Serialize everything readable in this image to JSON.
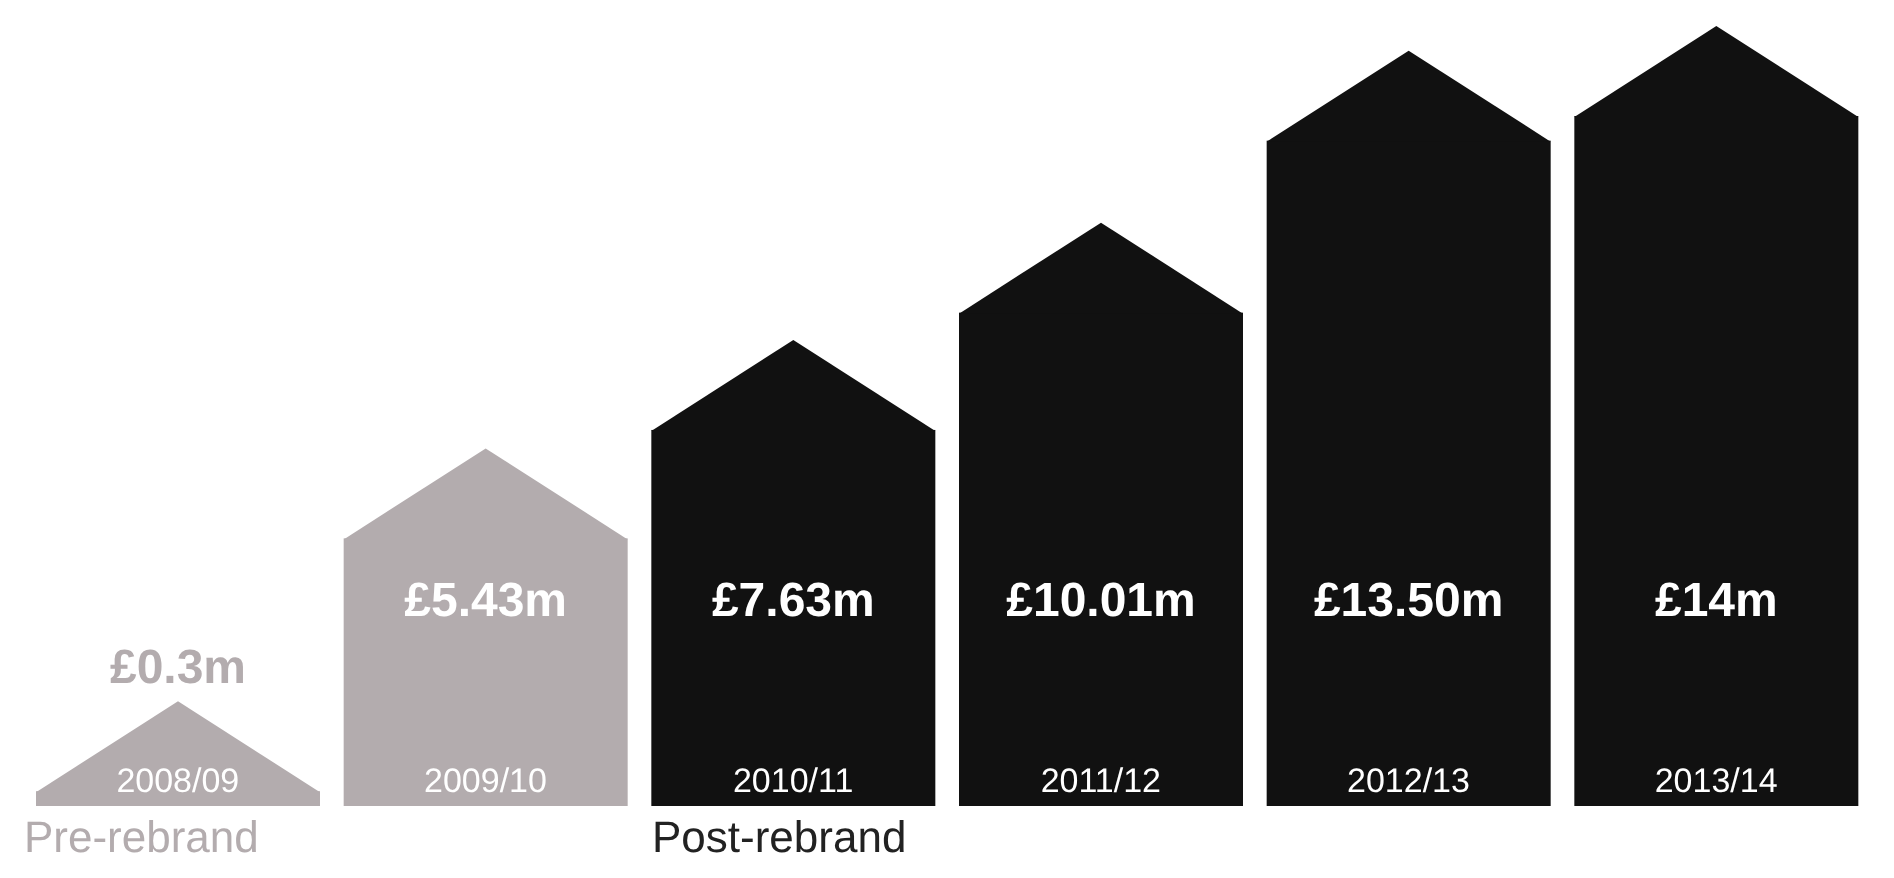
{
  "chart_data": {
    "type": "bar",
    "categories": [
      "2008/09",
      "2009/10",
      "2010/11",
      "2011/12",
      "2012/13",
      "2013/14"
    ],
    "values": [
      0.3,
      5.43,
      7.63,
      10.01,
      13.5,
      14
    ],
    "value_labels": [
      "£0.3m",
      "£5.43m",
      "£7.63m",
      "£10.01m",
      "£13.50m",
      "£14m"
    ],
    "colors": [
      "#b3acae",
      "#b3acae",
      "#111111",
      "#111111",
      "#111111",
      "#111111"
    ],
    "annotations": [
      "Pre-rebrand",
      "Post-rebrand"
    ]
  }
}
